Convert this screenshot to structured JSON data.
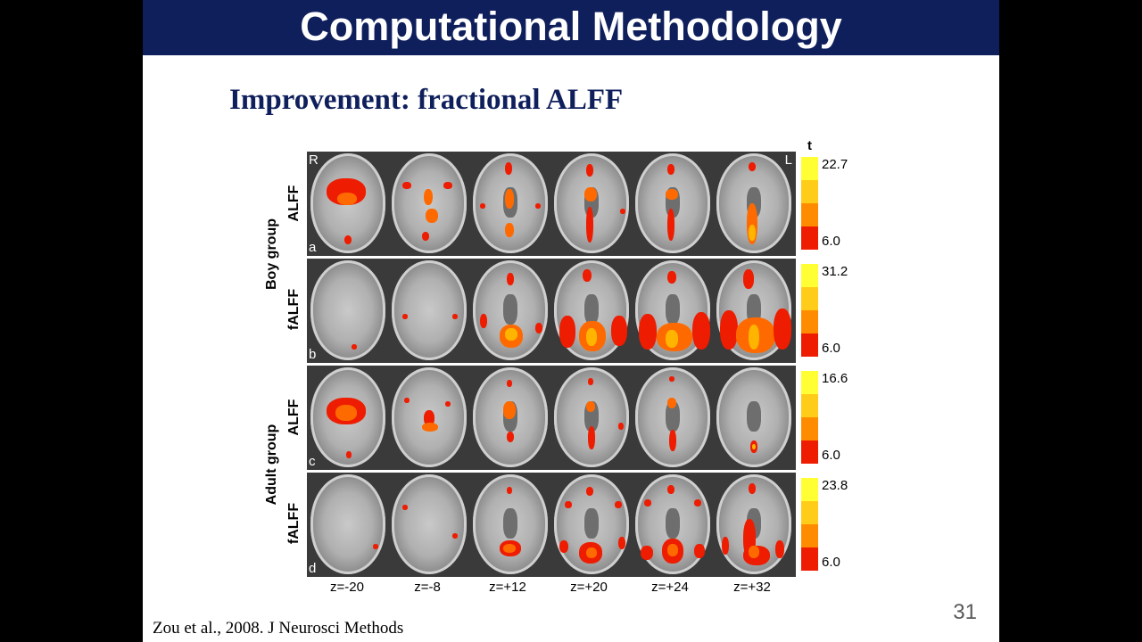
{
  "title": "Computational Methodology",
  "subtitle": "Improvement: fractional ALFF",
  "orientation": {
    "right": "R",
    "left": "L"
  },
  "colorbar_title": "t",
  "group_labels": [
    "Boy group",
    "Adult group"
  ],
  "rows": [
    {
      "panel": "a",
      "measure": "ALFF",
      "max": "22.7",
      "min": "6.0"
    },
    {
      "panel": "b",
      "measure": "fALFF",
      "max": "31.2",
      "min": "6.0"
    },
    {
      "panel": "c",
      "measure": "ALFF",
      "max": "16.6",
      "min": "6.0"
    },
    {
      "panel": "d",
      "measure": "fALFF",
      "max": "23.8",
      "min": "6.0"
    }
  ],
  "slices": [
    "z=-20",
    "z=-8",
    "z=+12",
    "z=+20",
    "z=+24",
    "z=+32"
  ],
  "colors": {
    "title_bar": "#0f1f5c",
    "heat_low": "#ee1c00",
    "heat_high": "#ffff33"
  },
  "page_number": "31",
  "citation": "Zou et al., 2008. J Neurosci Methods"
}
